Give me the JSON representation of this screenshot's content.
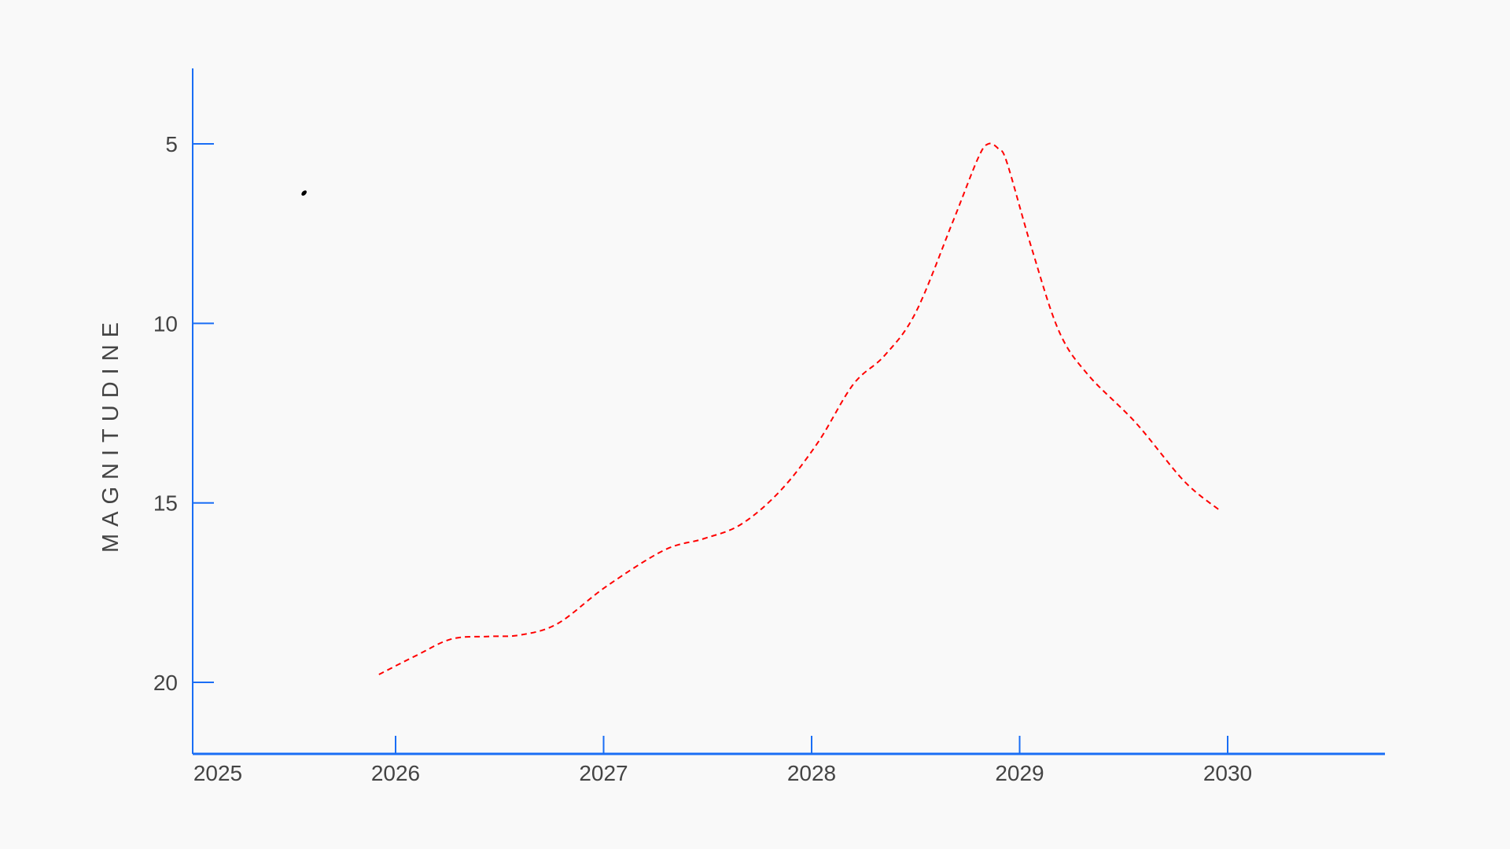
{
  "chart_data": {
    "type": "line",
    "title": "",
    "xlabel": "",
    "ylabel": "MAGNITUDINE",
    "xlim": [
      2025,
      2030.75
    ],
    "ylim": [
      22,
      3
    ],
    "y_inverted": true,
    "grid": false,
    "x_ticks": [
      "2025",
      "2026",
      "2027",
      "2028",
      "2029",
      "2030"
    ],
    "y_ticks": [
      "5",
      "10",
      "15",
      "20"
    ],
    "axis_color": "#1a6ef5",
    "series": [
      {
        "style": "dashed",
        "color": "#ff0000",
        "x": [
          2025.92,
          2026.1,
          2026.27,
          2026.45,
          2026.6,
          2026.78,
          2027.01,
          2027.29,
          2027.48,
          2027.66,
          2027.85,
          2028.03,
          2028.2,
          2028.35,
          2028.5,
          2028.68,
          2028.8,
          2028.85,
          2028.9,
          2028.94,
          2029.06,
          2029.19,
          2029.33,
          2029.56,
          2029.79,
          2029.96
        ],
        "y": [
          19.78,
          19.25,
          18.79,
          18.72,
          18.68,
          18.36,
          17.34,
          16.32,
          16.0,
          15.6,
          14.66,
          13.32,
          11.7,
          10.9,
          9.7,
          7.15,
          5.4,
          5.0,
          5.15,
          5.54,
          7.95,
          10.23,
          11.44,
          12.78,
          14.39,
          15.2
        ]
      },
      {
        "style": "point",
        "color": "#000000",
        "x": [
          2025.56
        ],
        "y": [
          6.37
        ]
      }
    ]
  }
}
